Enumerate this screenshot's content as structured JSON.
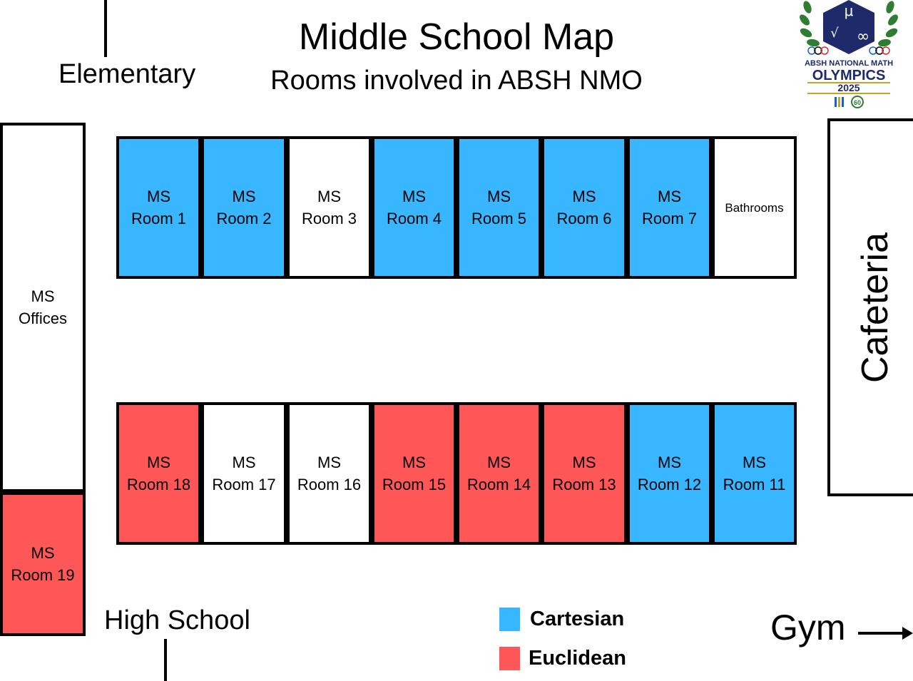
{
  "title": "Middle School Map",
  "subtitle": "Rooms involved in ABSH NMO",
  "colors": {
    "cartesian": "#38b6ff",
    "euclidean": "#ff5757",
    "none": "#ffffff"
  },
  "directions": {
    "elementary": "Elementary",
    "high_school": "High School",
    "gym": "Gym"
  },
  "logo": {
    "line1": "ABSH NATIONAL MATH",
    "line2": "OLYMPICS",
    "line3": "2025",
    "symbols": {
      "mu": "μ",
      "root": "√",
      "infinity": "∞",
      "sixty": "60"
    }
  },
  "top_row": [
    {
      "l1": "MS",
      "l2": "Room 1",
      "group": "cartesian"
    },
    {
      "l1": "MS",
      "l2": "Room 2",
      "group": "cartesian"
    },
    {
      "l1": "MS",
      "l2": "Room 3",
      "group": "none"
    },
    {
      "l1": "MS",
      "l2": "Room 4",
      "group": "cartesian"
    },
    {
      "l1": "MS",
      "l2": "Room 5",
      "group": "cartesian"
    },
    {
      "l1": "MS",
      "l2": "Room 6",
      "group": "cartesian"
    },
    {
      "l1": "MS",
      "l2": "Room 7",
      "group": "cartesian"
    },
    {
      "l1": "Bathrooms",
      "l2": "",
      "group": "none"
    }
  ],
  "bottom_row": [
    {
      "l1": "MS",
      "l2": "Room 18",
      "group": "euclidean"
    },
    {
      "l1": "MS",
      "l2": "Room 17",
      "group": "none"
    },
    {
      "l1": "MS",
      "l2": "Room 16",
      "group": "none"
    },
    {
      "l1": "MS",
      "l2": "Room 15",
      "group": "euclidean"
    },
    {
      "l1": "MS",
      "l2": "Room 14",
      "group": "euclidean"
    },
    {
      "l1": "MS",
      "l2": "Room 13",
      "group": "euclidean"
    },
    {
      "l1": "MS",
      "l2": "Room 12",
      "group": "cartesian"
    },
    {
      "l1": "MS",
      "l2": "Room 11",
      "group": "cartesian"
    }
  ],
  "offices": {
    "l1": "MS",
    "l2": "Offices",
    "group": "none"
  },
  "room19": {
    "l1": "MS",
    "l2": "Room 19",
    "group": "euclidean"
  },
  "cafeteria": "Cafeteria",
  "legend": [
    {
      "label": "Cartesian",
      "group": "cartesian"
    },
    {
      "label": "Euclidean",
      "group": "euclidean"
    }
  ]
}
